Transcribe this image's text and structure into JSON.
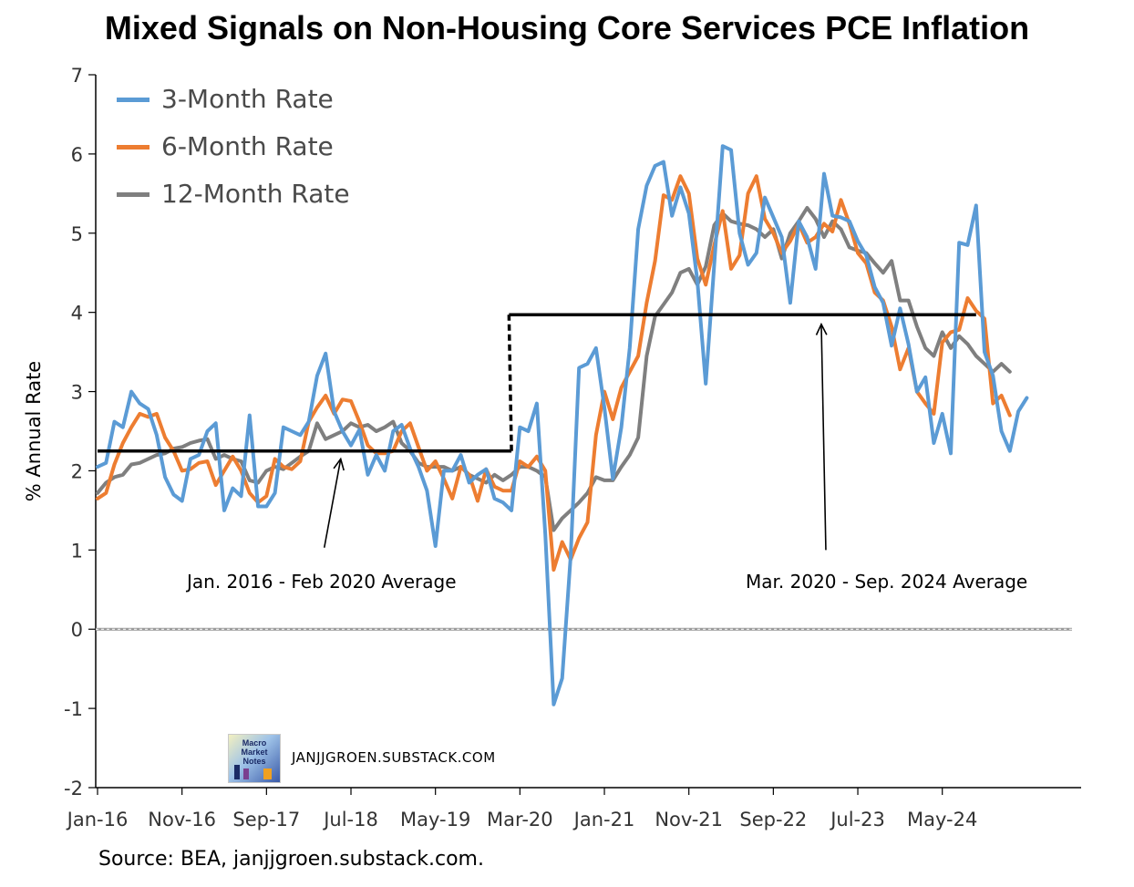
{
  "chart_data": {
    "type": "line",
    "title": "Mixed Signals on Non-Housing Core Services PCE Inflation",
    "ylabel": "% Annual Rate",
    "xlabel": "",
    "ylim": [
      -2,
      7
    ],
    "yticks": [
      "-2",
      "-1",
      "0",
      "1",
      "2",
      "3",
      "4",
      "5",
      "6",
      "7"
    ],
    "xtick_labels": [
      "Jan-16",
      "Nov-16",
      "Sep-17",
      "Jul-18",
      "May-19",
      "Mar-20",
      "Jan-21",
      "Nov-21",
      "Sep-22",
      "Jul-23",
      "May-24"
    ],
    "x_start": "Jan-16",
    "x_end": "Sep-24",
    "legend_position": "top-left",
    "grid": false,
    "series": [
      {
        "name": "3-Month Rate",
        "color": "#5b9bd5",
        "values": [
          2.05,
          2.1,
          2.62,
          2.55,
          3.0,
          2.85,
          2.78,
          2.45,
          1.92,
          1.7,
          1.62,
          2.15,
          2.2,
          2.5,
          2.6,
          1.5,
          1.78,
          1.68,
          2.7,
          1.55,
          1.55,
          1.72,
          2.55,
          2.5,
          2.45,
          2.62,
          3.2,
          3.48,
          2.75,
          2.5,
          2.32,
          2.52,
          1.95,
          2.2,
          2.0,
          2.5,
          2.58,
          2.28,
          2.05,
          1.75,
          1.05,
          2.0,
          2.0,
          2.2,
          1.85,
          1.95,
          2.02,
          1.65,
          1.6,
          1.5,
          2.55,
          2.5,
          2.85,
          1.2,
          -0.95,
          -0.62,
          0.92,
          3.3,
          3.35,
          3.55,
          2.8,
          1.9,
          2.55,
          3.55,
          5.05,
          5.6,
          5.85,
          5.9,
          5.22,
          5.58,
          5.25,
          4.4,
          3.1,
          4.6,
          6.1,
          6.05,
          5.0,
          4.6,
          4.75,
          5.45,
          5.2,
          4.95,
          4.12,
          5.15,
          4.95,
          4.55,
          5.75,
          5.22,
          5.2,
          5.15,
          4.9,
          4.72,
          4.32,
          4.12,
          3.58,
          4.05,
          3.6,
          3.0,
          3.18,
          2.35,
          2.72,
          2.22,
          4.88,
          4.85,
          5.35,
          3.5,
          3.2,
          2.5,
          2.25,
          2.75,
          2.92
        ]
      },
      {
        "name": "6-Month Rate",
        "color": "#ed7d31",
        "values": [
          1.65,
          1.72,
          2.08,
          2.35,
          2.55,
          2.72,
          2.68,
          2.72,
          2.42,
          2.25,
          2.0,
          2.02,
          2.1,
          2.12,
          1.82,
          2.0,
          2.18,
          2.0,
          1.72,
          1.6,
          1.68,
          2.15,
          2.05,
          2.02,
          2.12,
          2.62,
          2.8,
          2.95,
          2.72,
          2.9,
          2.88,
          2.62,
          2.32,
          2.22,
          2.22,
          2.25,
          2.5,
          2.6,
          2.3,
          2.0,
          2.12,
          1.9,
          1.65,
          2.05,
          1.95,
          1.62,
          2.02,
          1.8,
          1.75,
          1.75,
          2.12,
          2.05,
          2.18,
          2.0,
          0.75,
          1.1,
          0.88,
          1.15,
          1.35,
          2.45,
          3.0,
          2.65,
          3.05,
          3.25,
          3.45,
          4.12,
          4.65,
          5.48,
          5.42,
          5.72,
          5.5,
          4.68,
          4.35,
          4.85,
          5.28,
          4.55,
          4.72,
          5.5,
          5.72,
          5.18,
          5.0,
          4.75,
          4.9,
          5.12,
          4.88,
          4.95,
          5.12,
          5.02,
          5.42,
          5.12,
          4.75,
          4.62,
          4.25,
          4.15,
          3.82,
          3.28,
          3.55,
          3.0,
          2.85,
          2.72,
          3.62,
          3.75,
          3.78,
          4.18,
          4.02,
          3.92,
          2.85,
          2.95,
          2.7
        ]
      },
      {
        "name": "12-Month Rate",
        "color": "#7f7f7f",
        "values": [
          1.72,
          1.85,
          1.92,
          1.95,
          2.08,
          2.1,
          2.15,
          2.2,
          2.22,
          2.28,
          2.3,
          2.35,
          2.38,
          2.4,
          2.15,
          2.2,
          2.15,
          2.12,
          1.88,
          1.85,
          2.0,
          2.05,
          2.02,
          2.1,
          2.18,
          2.25,
          2.6,
          2.4,
          2.45,
          2.5,
          2.6,
          2.55,
          2.58,
          2.5,
          2.55,
          2.62,
          2.35,
          2.25,
          2.1,
          2.05,
          2.05,
          2.05,
          2.0,
          2.05,
          1.95,
          1.9,
          1.85,
          1.95,
          1.88,
          1.95,
          2.05,
          2.05,
          2.0,
          1.92,
          1.25,
          1.4,
          1.5,
          1.6,
          1.72,
          1.92,
          1.88,
          1.88,
          2.05,
          2.2,
          2.42,
          3.45,
          3.95,
          4.1,
          4.25,
          4.5,
          4.55,
          4.35,
          4.58,
          5.1,
          5.25,
          5.15,
          5.12,
          5.1,
          5.05,
          4.95,
          5.05,
          4.68,
          5.0,
          5.15,
          5.32,
          5.18,
          4.95,
          5.15,
          5.05,
          4.82,
          4.78,
          4.75,
          4.62,
          4.5,
          4.65,
          4.15,
          4.15,
          3.82,
          3.55,
          3.45,
          3.75,
          3.55,
          3.7,
          3.6,
          3.45,
          3.35,
          3.25,
          3.35,
          3.25
        ]
      }
    ],
    "reference_lines": [
      {
        "label": "Jan. 2016 - Feb 2020 Average",
        "value": 2.25,
        "start": "Jan-16",
        "end": "Feb-20"
      },
      {
        "label": "Mar. 2020 - Sep. 2024 Average",
        "value": 3.97,
        "start": "Mar-20",
        "end": "Sep-24"
      }
    ],
    "source": "Source: BEA, janjjgroen.substack.com.",
    "watermark": "JANJJGROEN.SUBSTACK.COM",
    "logo_text": "Macro Market Notes"
  }
}
